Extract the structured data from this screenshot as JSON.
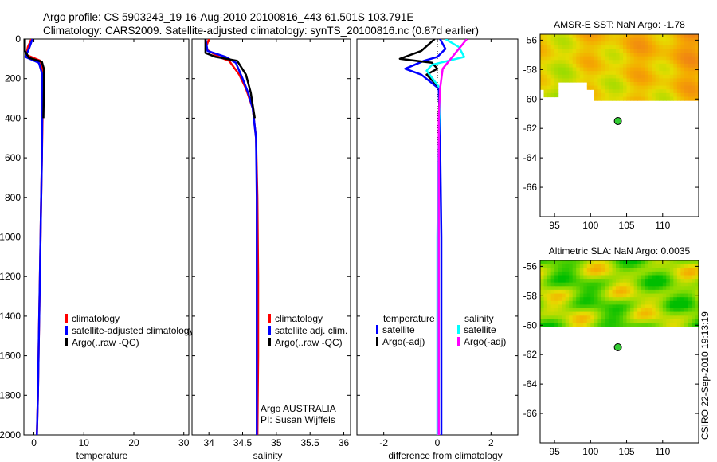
{
  "header": {
    "line1": "Argo profile: CS 5903243_19 16-Aug-2010 20100816_443 61.501S 103.791E",
    "line2": "Climatology: CARS2009. Satellite-adjusted climatology: synTS_20100816.nc (0.87d earlier)"
  },
  "side_label": "CSIRO 22-Sep-2010 19:13:19",
  "colors": {
    "climatology": "#ff0000",
    "satellite": "#0000ff",
    "argo": "#000000",
    "sal_satellite": "#00ffff",
    "sal_argo": "#ff00ff",
    "map_land": "#ffffff",
    "float_marker": "#33cc33"
  },
  "chart_data": [
    {
      "type": "line",
      "id": "temperature",
      "xlabel": "temperature",
      "xlim": [
        -2,
        31
      ],
      "xticks": [
        0,
        10,
        20,
        30
      ],
      "ylim": [
        2000,
        0
      ],
      "yticks": [
        0,
        200,
        400,
        600,
        800,
        1000,
        1200,
        1400,
        1600,
        1800,
        2000
      ],
      "legend": [
        {
          "label": "climatology",
          "color_key": "climatology"
        },
        {
          "label": "satellite-adjusted climatology",
          "color_key": "satellite"
        },
        {
          "label": "Argo(..raw -QC)",
          "color_key": "argo"
        }
      ],
      "series": [
        {
          "name": "climatology",
          "color_key": "climatology",
          "points": [
            [
              -0.5,
              0
            ],
            [
              -1.2,
              40
            ],
            [
              -1.5,
              80
            ],
            [
              1.3,
              110
            ],
            [
              1.8,
              160
            ],
            [
              1.8,
              300
            ],
            [
              1.6,
              600
            ],
            [
              1.4,
              900
            ],
            [
              1.2,
              1200
            ],
            [
              1.0,
              1500
            ],
            [
              0.8,
              1800
            ],
            [
              0.6,
              2000
            ]
          ]
        },
        {
          "name": "satellite-adjusted climatology",
          "color_key": "satellite",
          "points": [
            [
              -0.3,
              0
            ],
            [
              -1.0,
              50
            ],
            [
              -1.7,
              90
            ],
            [
              1.0,
              120
            ],
            [
              1.7,
              180
            ],
            [
              1.7,
              300
            ],
            [
              1.6,
              600
            ],
            [
              1.4,
              900
            ],
            [
              1.2,
              1200
            ],
            [
              1.0,
              1500
            ],
            [
              0.8,
              1800
            ],
            [
              0.6,
              2000
            ]
          ]
        },
        {
          "name": "Argo(..raw -QC)",
          "color_key": "argo",
          "points": [
            [
              -1.8,
              0
            ],
            [
              -1.8,
              60
            ],
            [
              -1.0,
              95
            ],
            [
              1.6,
              115
            ],
            [
              2.0,
              150
            ],
            [
              2.0,
              250
            ],
            [
              1.9,
              400
            ]
          ]
        }
      ]
    },
    {
      "type": "line",
      "id": "salinity",
      "xlabel": "salinity",
      "xlim": [
        33.75,
        36.1
      ],
      "xticks": [
        34,
        34.5,
        35,
        35.5,
        36
      ],
      "legend": [
        {
          "label": "climatology",
          "color_key": "climatology"
        },
        {
          "label": "satellite adj. clim.",
          "color_key": "satellite"
        },
        {
          "label": "Argo(..raw -QC)",
          "color_key": "argo"
        }
      ],
      "annotations": [
        "Argo AUSTRALIA",
        "PI: Susan Wijffels"
      ],
      "series": [
        {
          "name": "climatology",
          "color_key": "climatology",
          "points": [
            [
              34.0,
              0
            ],
            [
              33.95,
              50
            ],
            [
              34.15,
              90
            ],
            [
              34.3,
              110
            ],
            [
              34.45,
              180
            ],
            [
              34.55,
              250
            ],
            [
              34.65,
              350
            ],
            [
              34.7,
              500
            ],
            [
              34.72,
              800
            ],
            [
              34.73,
              1200
            ],
            [
              34.73,
              1600
            ],
            [
              34.72,
              2000
            ]
          ]
        },
        {
          "name": "satellite adj. clim.",
          "color_key": "satellite",
          "points": [
            [
              33.95,
              0
            ],
            [
              33.98,
              60
            ],
            [
              34.25,
              90
            ],
            [
              34.4,
              120
            ],
            [
              34.5,
              200
            ],
            [
              34.58,
              270
            ],
            [
              34.65,
              350
            ],
            [
              34.7,
              500
            ],
            [
              34.71,
              800
            ],
            [
              34.71,
              1200
            ],
            [
              34.71,
              1600
            ],
            [
              34.71,
              2000
            ]
          ]
        },
        {
          "name": "Argo(..raw -QC)",
          "color_key": "argo",
          "points": [
            [
              33.95,
              0
            ],
            [
              33.95,
              70
            ],
            [
              34.1,
              90
            ],
            [
              34.42,
              110
            ],
            [
              34.55,
              180
            ],
            [
              34.62,
              270
            ],
            [
              34.68,
              400
            ]
          ]
        }
      ]
    },
    {
      "type": "line",
      "id": "difference",
      "xlabel": "difference from climatology",
      "xlim": [
        -3,
        3
      ],
      "xticks": [
        -2,
        0,
        2
      ],
      "legend_left_title": "temperature",
      "legend_right_title": "salinity",
      "legend_left": [
        {
          "label": "satellite",
          "color_key": "satellite"
        },
        {
          "label": "Argo(-adj)",
          "color_key": "argo"
        }
      ],
      "legend_right": [
        {
          "label": "satellite",
          "color_key": "sal_satellite"
        },
        {
          "label": "Argo(-adj)",
          "color_key": "sal_argo"
        }
      ],
      "series": [
        {
          "name": "temperature satellite",
          "color_key": "satellite",
          "points": [
            [
              0.1,
              0
            ],
            [
              0.3,
              50
            ],
            [
              0.0,
              90
            ],
            [
              -0.5,
              110
            ],
            [
              -1.2,
              150
            ],
            [
              -0.6,
              180
            ],
            [
              0.05,
              250
            ],
            [
              0.1,
              500
            ],
            [
              0.15,
              1000
            ],
            [
              0.15,
              1500
            ],
            [
              0.15,
              2000
            ]
          ]
        },
        {
          "name": "temperature Argo(-adj)",
          "color_key": "argo",
          "points": [
            [
              -0.1,
              0
            ],
            [
              -0.6,
              60
            ],
            [
              -1.4,
              100
            ],
            [
              -0.2,
              120
            ],
            [
              0.0,
              150
            ],
            [
              -0.4,
              180
            ],
            [
              0.1,
              250
            ],
            [
              0.05,
              400
            ]
          ]
        },
        {
          "name": "salinity satellite",
          "color_key": "sal_satellite",
          "points": [
            [
              0.3,
              0
            ],
            [
              0.8,
              40
            ],
            [
              1.0,
              90
            ],
            [
              -0.2,
              130
            ],
            [
              -0.4,
              160
            ],
            [
              0.1,
              250
            ],
            [
              0.05,
              500
            ],
            [
              0.0,
              1000
            ],
            [
              0.0,
              1500
            ],
            [
              0.0,
              2000
            ]
          ]
        },
        {
          "name": "salinity Argo(-adj)",
          "color_key": "sal_argo",
          "points": [
            [
              1.1,
              0
            ],
            [
              0.8,
              50
            ],
            [
              0.5,
              100
            ],
            [
              0.2,
              150
            ],
            [
              0.1,
              250
            ],
            [
              0.05,
              400
            ],
            [
              0.05,
              800
            ],
            [
              0.05,
              1200
            ],
            [
              0.05,
              1600
            ],
            [
              0.05,
              2000
            ]
          ]
        }
      ]
    },
    {
      "type": "heatmap",
      "id": "sst_map",
      "title": "AMSR-E SST: NaN Argo: -1.78",
      "xlim": [
        93,
        115
      ],
      "ylim": [
        -68,
        -55.6
      ],
      "xticks": [
        95,
        100,
        105,
        110
      ],
      "yticks": [
        -56,
        -58,
        -60,
        -62,
        -64,
        -66
      ],
      "data_south_edge": -60.1,
      "float": {
        "lon": 103.791,
        "lat": -61.501
      }
    },
    {
      "type": "heatmap",
      "id": "sla_map",
      "title": "Altimetric SLA: NaN Argo: 0.0035",
      "xlim": [
        93,
        115
      ],
      "ylim": [
        -68,
        -55.6
      ],
      "xticks": [
        95,
        100,
        105,
        110
      ],
      "yticks": [
        -56,
        -58,
        -60,
        -62,
        -64,
        -66
      ],
      "data_south_edge": -60.1,
      "float": {
        "lon": 103.791,
        "lat": -61.501
      }
    }
  ]
}
